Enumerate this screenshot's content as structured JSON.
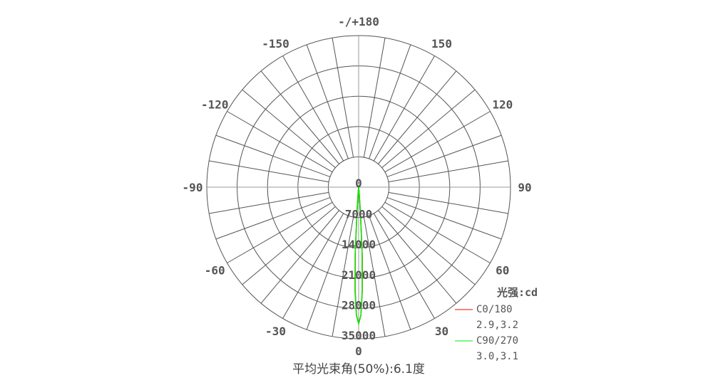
{
  "chart_data": {
    "type": "polar",
    "title": "平均光束角(50%):6.1度",
    "unit_label": "光强:cd",
    "radial_ticks": [
      0,
      7000,
      14000,
      21000,
      28000,
      35000
    ],
    "radial_range": [
      0,
      35000
    ],
    "angle_ticks": [
      "0",
      "30",
      "60",
      "90",
      "120",
      "150",
      "-/+180",
      "-150",
      "-120",
      "-90",
      "-60",
      "-30"
    ],
    "angle_grid_step_deg": 10,
    "grid": true,
    "legend_placement": "bottom-right",
    "series": [
      {
        "name": "C0/180",
        "beam_angles": "2.9,3.2",
        "color": "#ff0000",
        "angles": [
          -10,
          -8,
          -6,
          -5,
          -4,
          -3,
          -2,
          -1,
          0,
          1,
          2,
          3,
          4,
          5,
          6,
          8,
          10
        ],
        "values": [
          0,
          50,
          400,
          1300,
          4500,
          14500,
          23500,
          29500,
          31500,
          29600,
          24000,
          16000,
          6000,
          1800,
          600,
          80,
          0
        ]
      },
      {
        "name": "C90/270",
        "beam_angles": "3.0,3.1",
        "color": "#00ee00",
        "angles": [
          -10,
          -8,
          -6,
          -5,
          -4,
          -3,
          -2,
          -1,
          0,
          1,
          2,
          3,
          4,
          5,
          6,
          8,
          10
        ],
        "values": [
          0,
          60,
          450,
          1400,
          5000,
          15500,
          24000,
          29600,
          31500,
          29600,
          23800,
          15200,
          5200,
          1500,
          500,
          60,
          0
        ]
      }
    ]
  }
}
